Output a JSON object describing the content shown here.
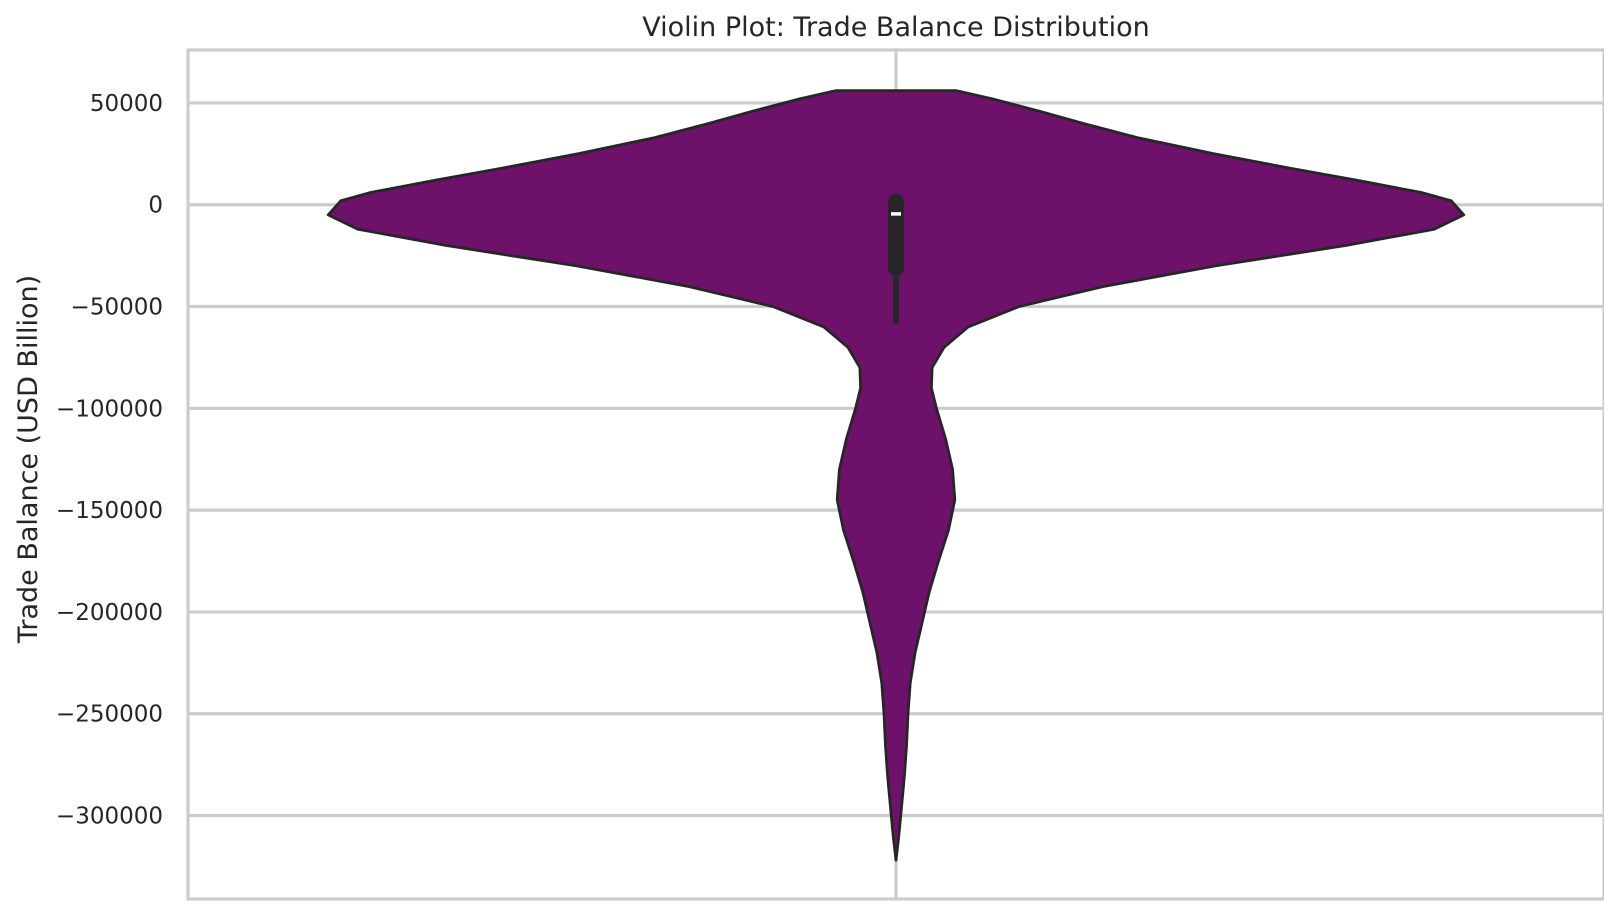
{
  "chart_data": {
    "type": "violin",
    "title": "Violin Plot: Trade Balance Distribution",
    "xlabel": "",
    "ylabel": "Trade Balance (USD Billion)",
    "ylim": [
      -341000,
      76000
    ],
    "yticks": [
      50000,
      0,
      -50000,
      -100000,
      -150000,
      -200000,
      -250000,
      -300000
    ],
    "ytick_labels": [
      "50000",
      "0",
      "−50000",
      "−100000",
      "−150000",
      "−200000",
      "−250000",
      "−300000"
    ],
    "grid": true,
    "fill_color": "#6e116b",
    "edge_color": "#262626",
    "data_range": [
      -322000,
      56000
    ],
    "density_profile": [
      {
        "y": 56000,
        "w": 0.0855
      },
      {
        "y": 52000,
        "w": 0.136
      },
      {
        "y": 46000,
        "w": 0.202
      },
      {
        "y": 40000,
        "w": 0.264
      },
      {
        "y": 33000,
        "w": 0.34
      },
      {
        "y": 25000,
        "w": 0.449
      },
      {
        "y": 18000,
        "w": 0.556
      },
      {
        "y": 12000,
        "w": 0.651
      },
      {
        "y": 6000,
        "w": 0.742
      },
      {
        "y": 2000,
        "w": 0.784
      },
      {
        "y": -5000,
        "w": 0.802
      },
      {
        "y": -12000,
        "w": 0.76
      },
      {
        "y": -20000,
        "w": 0.635
      },
      {
        "y": -30000,
        "w": 0.452
      },
      {
        "y": -40000,
        "w": 0.295
      },
      {
        "y": -50000,
        "w": 0.174
      },
      {
        "y": -60000,
        "w": 0.102
      },
      {
        "y": -70000,
        "w": 0.068
      },
      {
        "y": -80000,
        "w": 0.051
      },
      {
        "y": -90000,
        "w": 0.05
      },
      {
        "y": -100000,
        "w": 0.057
      },
      {
        "y": -115000,
        "w": 0.07
      },
      {
        "y": -130000,
        "w": 0.08
      },
      {
        "y": -145000,
        "w": 0.083
      },
      {
        "y": -160000,
        "w": 0.074
      },
      {
        "y": -175000,
        "w": 0.06
      },
      {
        "y": -190000,
        "w": 0.047
      },
      {
        "y": -205000,
        "w": 0.037
      },
      {
        "y": -220000,
        "w": 0.027
      },
      {
        "y": -235000,
        "w": 0.02
      },
      {
        "y": -250000,
        "w": 0.017
      },
      {
        "y": -265000,
        "w": 0.015
      },
      {
        "y": -280000,
        "w": 0.012
      },
      {
        "y": -295000,
        "w": 0.008
      },
      {
        "y": -310000,
        "w": 0.004
      },
      {
        "y": -322000,
        "w": 0.0
      }
    ],
    "box": {
      "whisker_low": -57000,
      "q1": -31000,
      "median": -4500,
      "q3": 1500,
      "whisker_high": 1500
    }
  }
}
